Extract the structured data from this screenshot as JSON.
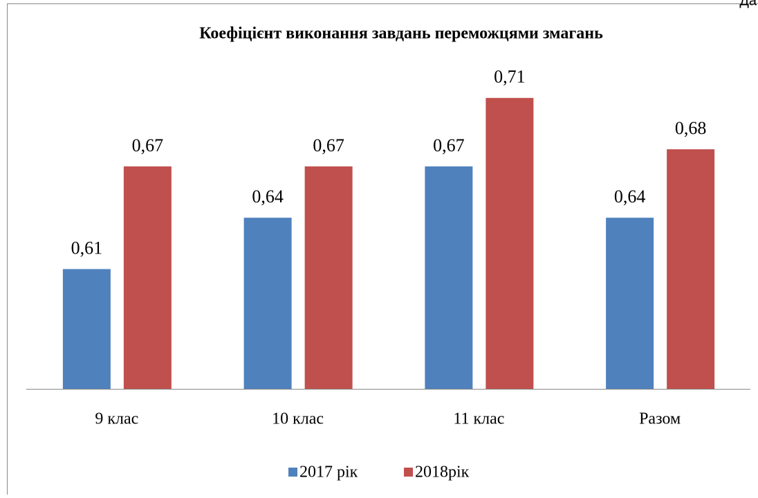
{
  "corner_text": "Да",
  "chart_data": {
    "type": "bar",
    "title": "Коефіцієнт виконання завдань переможцями змагань",
    "categories": [
      "9 клас",
      "10 клас",
      "11 клас",
      "Разом"
    ],
    "series": [
      {
        "name": "2017 рік",
        "color": "#4f81bd",
        "values": [
          0.61,
          0.64,
          0.67,
          0.64
        ],
        "value_labels": [
          "0,61",
          "0,64",
          "0,67",
          "0,64"
        ]
      },
      {
        "name": "2018рік",
        "color": "#c0504d",
        "values": [
          0.67,
          0.67,
          0.71,
          0.68
        ],
        "value_labels": [
          "0,67",
          "0,67",
          "0,71",
          "0,68"
        ]
      }
    ],
    "ylim": [
      0.54,
      0.72
    ],
    "legend": "bottom"
  }
}
